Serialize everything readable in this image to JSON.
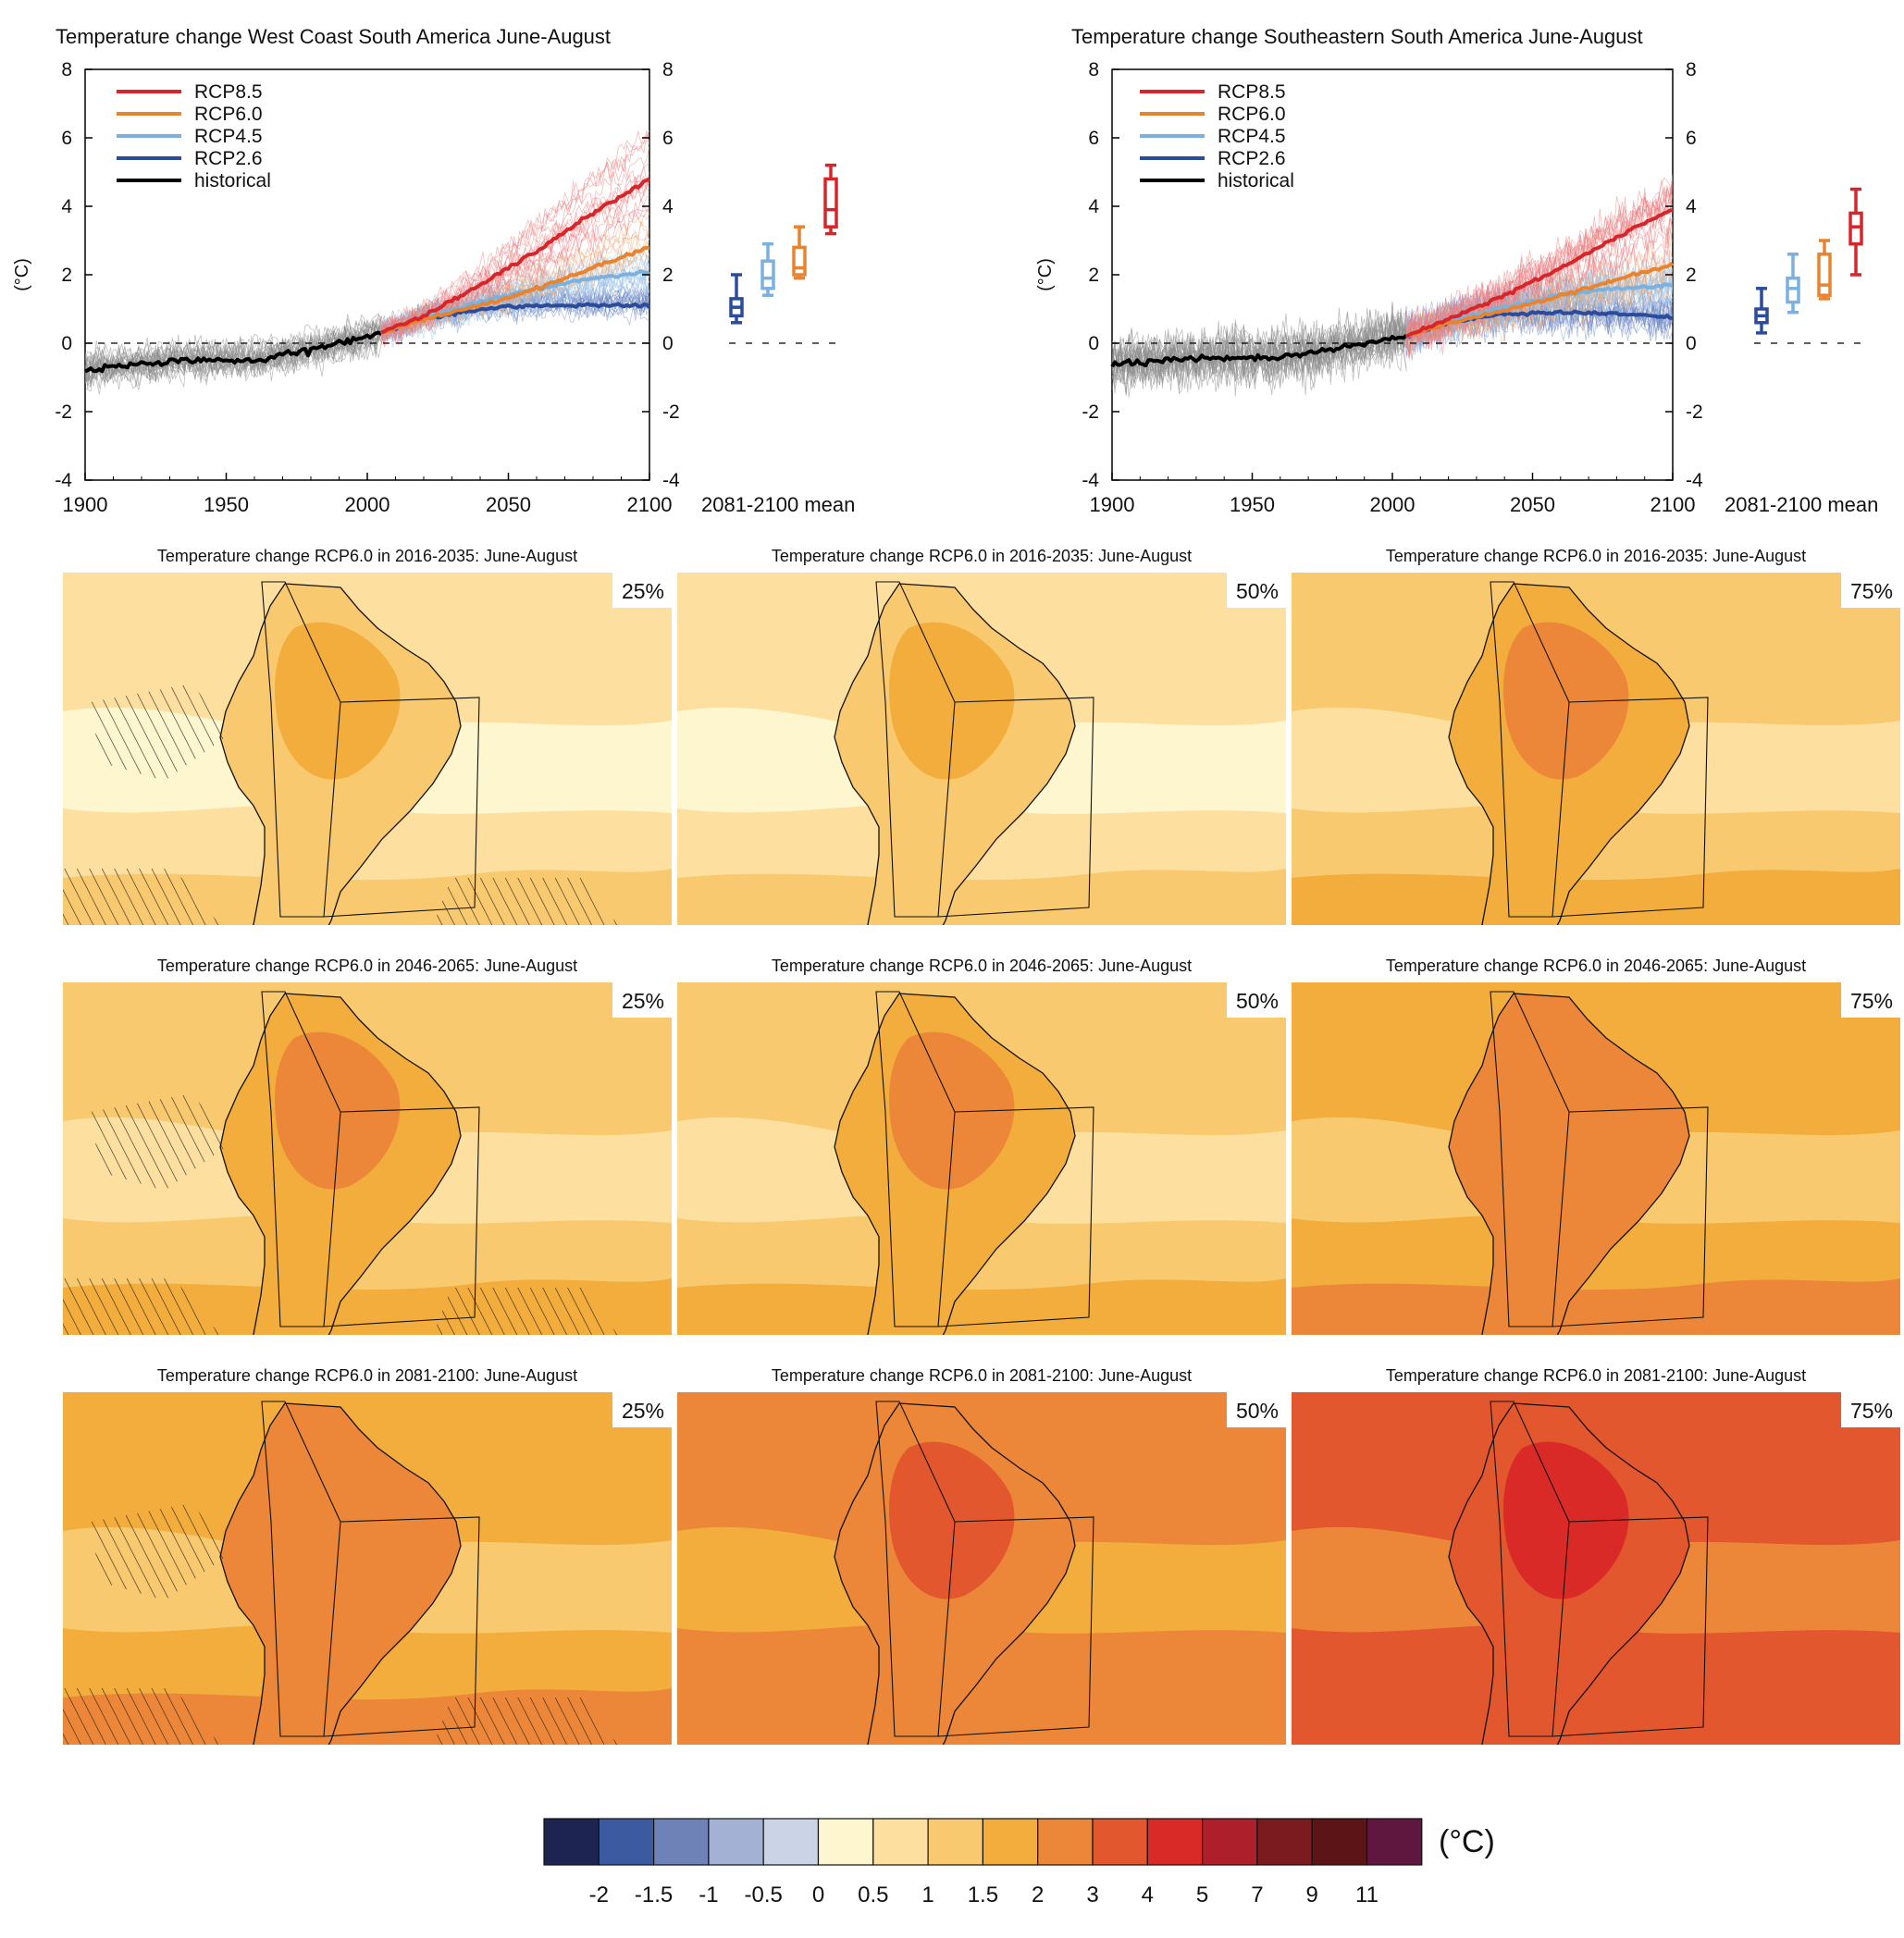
{
  "chart_data": [
    {
      "type": "line",
      "title": "Temperature change West Coast South America June-August",
      "ylabel": "(°C)",
      "xlabel": "",
      "xlim": [
        1900,
        2100
      ],
      "ylim": [
        -4,
        8
      ],
      "xticks": [
        "1900",
        "1950",
        "2000",
        "2050",
        "2100"
      ],
      "yticks": [
        "-4",
        "-2",
        "0",
        "2",
        "4",
        "6",
        "8"
      ],
      "reference_line": 0,
      "legend": {
        "position": "top-left",
        "entries": [
          "RCP8.5",
          "RCP6.0",
          "RCP4.5",
          "RCP2.6",
          "historical"
        ]
      },
      "series": [
        {
          "name": "historical",
          "color": "#000000",
          "x": [
            1900,
            1910,
            1920,
            1930,
            1940,
            1950,
            1960,
            1970,
            1980,
            1990,
            2000,
            2005
          ],
          "y": [
            -0.8,
            -0.7,
            -0.6,
            -0.55,
            -0.5,
            -0.5,
            -0.5,
            -0.35,
            -0.2,
            0.0,
            0.2,
            0.3
          ]
        },
        {
          "name": "RCP2.6",
          "color": "#2b4c9b",
          "x": [
            2005,
            2020,
            2040,
            2060,
            2080,
            2100
          ],
          "y": [
            0.3,
            0.7,
            1.0,
            1.1,
            1.1,
            1.1
          ]
        },
        {
          "name": "RCP4.5",
          "color": "#7bb0df",
          "x": [
            2005,
            2020,
            2040,
            2060,
            2080,
            2100
          ],
          "y": [
            0.3,
            0.75,
            1.2,
            1.6,
            1.9,
            2.1
          ]
        },
        {
          "name": "RCP6.0",
          "color": "#e88330",
          "x": [
            2005,
            2020,
            2040,
            2060,
            2080,
            2100
          ],
          "y": [
            0.3,
            0.7,
            1.1,
            1.6,
            2.2,
            2.8
          ]
        },
        {
          "name": "RCP8.5",
          "color": "#d7262b",
          "x": [
            2005,
            2020,
            2040,
            2060,
            2080,
            2100
          ],
          "y": [
            0.3,
            0.8,
            1.7,
            2.7,
            3.8,
            4.8
          ]
        }
      ],
      "side_panel": {
        "label": "2081-2100 mean",
        "boxes": [
          {
            "name": "RCP2.6",
            "color": "#2b4c9b",
            "min": 0.6,
            "q1": 0.8,
            "median": 1.05,
            "q3": 1.3,
            "max": 2.0
          },
          {
            "name": "RCP4.5",
            "color": "#7bb0df",
            "min": 1.4,
            "q1": 1.6,
            "median": 1.9,
            "q3": 2.4,
            "max": 2.9
          },
          {
            "name": "RCP6.0",
            "color": "#e88330",
            "min": 1.9,
            "q1": 2.0,
            "median": 2.2,
            "q3": 2.8,
            "max": 3.4
          },
          {
            "name": "RCP8.5",
            "color": "#d7262b",
            "min": 3.2,
            "q1": 3.4,
            "median": 3.9,
            "q3": 4.8,
            "max": 5.2
          }
        ]
      }
    },
    {
      "type": "line",
      "title": "Temperature change Southeastern South America June-August",
      "ylabel": "(°C)",
      "xlabel": "",
      "xlim": [
        1900,
        2100
      ],
      "ylim": [
        -4,
        8
      ],
      "xticks": [
        "1900",
        "1950",
        "2000",
        "2050",
        "2100"
      ],
      "yticks": [
        "-4",
        "-2",
        "0",
        "2",
        "4",
        "6",
        "8"
      ],
      "reference_line": 0,
      "legend": {
        "position": "top-left",
        "entries": [
          "RCP8.5",
          "RCP6.0",
          "RCP4.5",
          "RCP2.6",
          "historical"
        ]
      },
      "series": [
        {
          "name": "historical",
          "color": "#000000",
          "x": [
            1900,
            1910,
            1920,
            1930,
            1940,
            1950,
            1960,
            1970,
            1980,
            1990,
            2000,
            2005
          ],
          "y": [
            -0.6,
            -0.55,
            -0.5,
            -0.45,
            -0.4,
            -0.45,
            -0.4,
            -0.3,
            -0.15,
            0.0,
            0.15,
            0.2
          ]
        },
        {
          "name": "RCP2.6",
          "color": "#2b4c9b",
          "x": [
            2005,
            2020,
            2040,
            2060,
            2080,
            2100
          ],
          "y": [
            0.2,
            0.6,
            0.85,
            0.9,
            0.85,
            0.75
          ]
        },
        {
          "name": "RCP4.5",
          "color": "#7bb0df",
          "x": [
            2005,
            2020,
            2040,
            2060,
            2080,
            2100
          ],
          "y": [
            0.2,
            0.65,
            1.05,
            1.4,
            1.6,
            1.7
          ]
        },
        {
          "name": "RCP6.0",
          "color": "#e88330",
          "x": [
            2005,
            2020,
            2040,
            2060,
            2080,
            2100
          ],
          "y": [
            0.2,
            0.6,
            0.95,
            1.4,
            1.85,
            2.3
          ]
        },
        {
          "name": "RCP8.5",
          "color": "#d7262b",
          "x": [
            2005,
            2020,
            2040,
            2060,
            2080,
            2100
          ],
          "y": [
            0.2,
            0.7,
            1.4,
            2.2,
            3.1,
            3.9
          ]
        }
      ],
      "side_panel": {
        "label": "2081-2100 mean",
        "boxes": [
          {
            "name": "RCP2.6",
            "color": "#2b4c9b",
            "min": 0.3,
            "q1": 0.6,
            "median": 0.8,
            "q3": 1.0,
            "max": 1.6
          },
          {
            "name": "RCP4.5",
            "color": "#7bb0df",
            "min": 0.9,
            "q1": 1.2,
            "median": 1.6,
            "q3": 1.9,
            "max": 2.6
          },
          {
            "name": "RCP6.0",
            "color": "#e88330",
            "min": 1.3,
            "q1": 1.4,
            "median": 1.7,
            "q3": 2.6,
            "max": 3.0
          },
          {
            "name": "RCP8.5",
            "color": "#d7262b",
            "min": 2.0,
            "q1": 2.9,
            "median": 3.4,
            "q3": 3.8,
            "max": 4.5
          }
        ]
      }
    },
    {
      "type": "heatmap",
      "colorbar": {
        "unit": "(°C)",
        "ticks": [
          "-2",
          "-1.5",
          "-1",
          "-0.5",
          "0",
          "0.5",
          "1",
          "1.5",
          "2",
          "3",
          "4",
          "5",
          "7",
          "9",
          "11"
        ],
        "colors": [
          "#1d2451",
          "#3c5aa0",
          "#6e82b8",
          "#a2b1d4",
          "#cbd3e6",
          "#fef6cf",
          "#fde0a0",
          "#f9c96f",
          "#f2ad3d",
          "#ec8739",
          "#e2572d",
          "#d92a28",
          "#ad1f2a",
          "#7b1b1f",
          "#5c1417",
          "#5f1740"
        ]
      },
      "panels": [
        {
          "title": "Temperature change RCP6.0 in 2016-2035: June-August",
          "percentile": "25%",
          "level": 0.5,
          "hatched": true
        },
        {
          "title": "Temperature change RCP6.0 in 2016-2035: June-August",
          "percentile": "50%",
          "level": 0.75,
          "hatched": false
        },
        {
          "title": "Temperature change RCP6.0 in 2016-2035: June-August",
          "percentile": "75%",
          "level": 1.0,
          "hatched": false
        },
        {
          "title": "Temperature change RCP6.0 in 2046-2065: June-August",
          "percentile": "25%",
          "level": 1.0,
          "hatched": true
        },
        {
          "title": "Temperature change RCP6.0 in 2046-2065: June-August",
          "percentile": "50%",
          "level": 1.4,
          "hatched": false
        },
        {
          "title": "Temperature change RCP6.0 in 2046-2065: June-August",
          "percentile": "75%",
          "level": 1.8,
          "hatched": false
        },
        {
          "title": "Temperature change RCP6.0 in 2081-2100: June-August",
          "percentile": "25%",
          "level": 1.6,
          "hatched": true
        },
        {
          "title": "Temperature change RCP6.0 in 2081-2100: June-August",
          "percentile": "50%",
          "level": 2.2,
          "hatched": false
        },
        {
          "title": "Temperature change RCP6.0 in 2081-2100: June-August",
          "percentile": "75%",
          "level": 3.0,
          "hatched": false
        }
      ]
    }
  ]
}
